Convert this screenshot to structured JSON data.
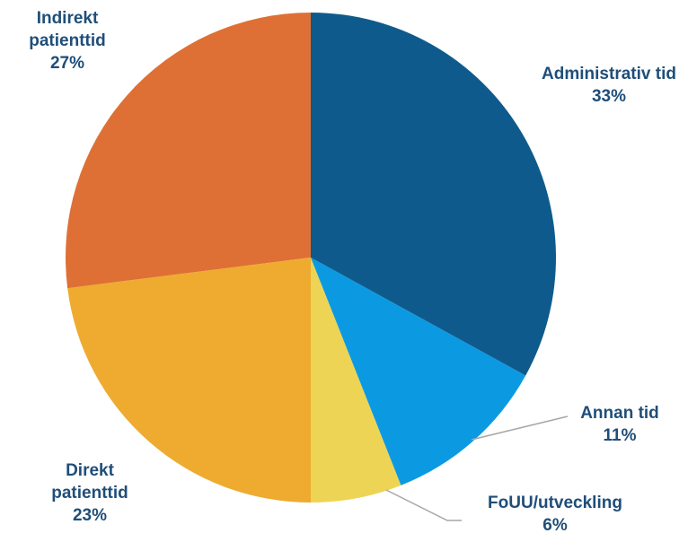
{
  "chart_data": {
    "type": "pie",
    "categories": [
      "Administrativ tid",
      "Annan tid",
      "FoUU/utveckling",
      "Direkt patienttid",
      "Indirekt patienttid"
    ],
    "values": [
      33,
      11,
      6,
      23,
      27
    ],
    "value_labels": [
      "33%",
      "11%",
      "6%",
      "23%",
      "27%"
    ],
    "colors": [
      "#0f5a8c",
      "#0b9ae2",
      "#eed455",
      "#eeab30",
      "#df7035"
    ]
  }
}
